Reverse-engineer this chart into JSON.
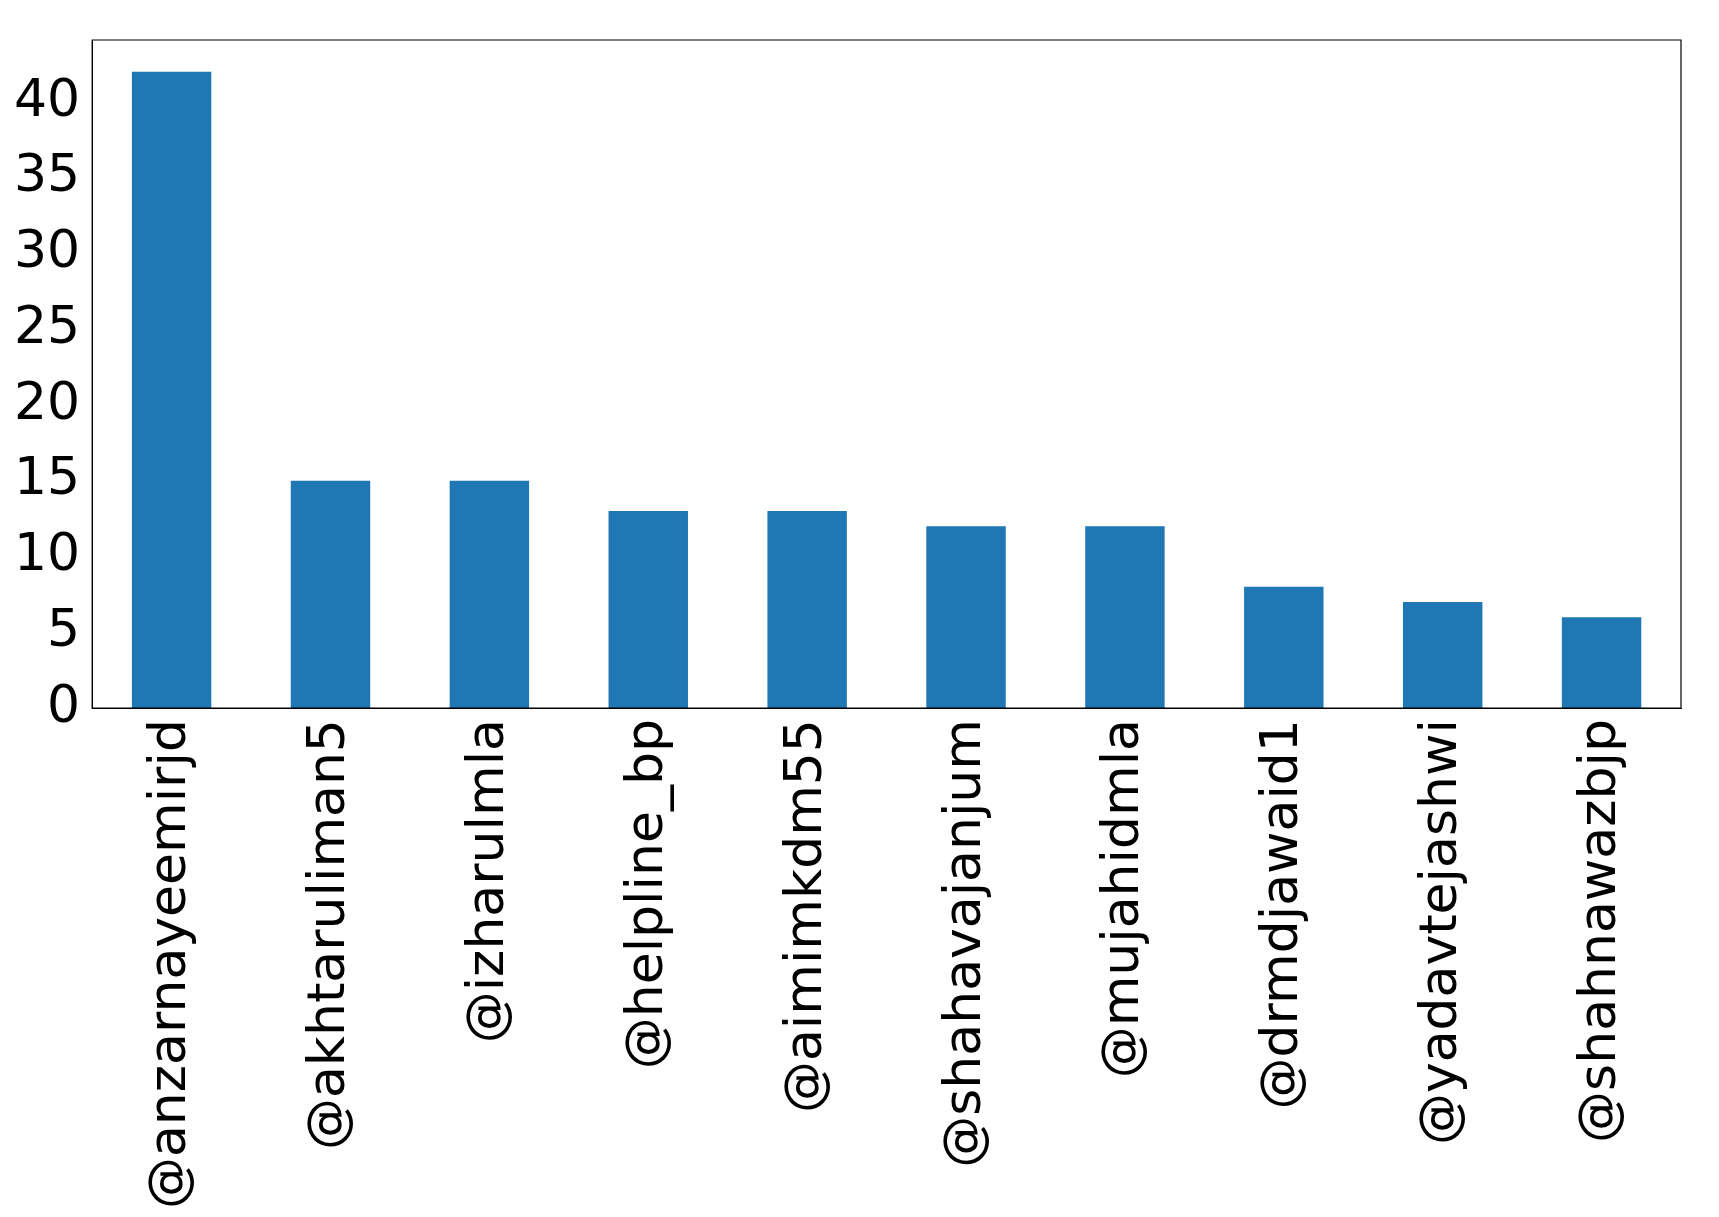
{
  "chart_data": {
    "type": "bar",
    "categories": [
      "@anzarnayeemirjd",
      "@akhtaruliman5",
      "@izharulmla",
      "@helpline_bp",
      "@aimimkdm55",
      "@shahavajanjum",
      "@mujahidmla",
      "@drmdjawaid1",
      "@yadavtejashwi",
      "@shahnawazbjp"
    ],
    "values": [
      42,
      15,
      15,
      13,
      13,
      12,
      12,
      8,
      7,
      6
    ],
    "color": "#1f77b4",
    "ylim": [
      0,
      44.1
    ],
    "yticks": [
      0,
      5,
      10,
      15,
      20,
      25,
      30,
      35,
      40
    ],
    "grid": false,
    "legend": false
  }
}
